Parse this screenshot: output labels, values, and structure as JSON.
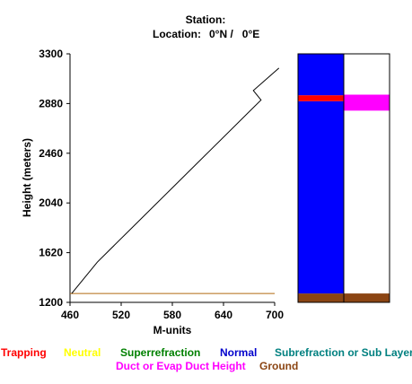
{
  "header": {
    "station_label": "Station:",
    "location_label": "Location:",
    "location_value": "0°N /   0°E"
  },
  "chart_data": {
    "type": "line",
    "xlabel": "M-units",
    "ylabel": "Height (meters)",
    "xlim": [
      460,
      700
    ],
    "ylim": [
      1200,
      3300
    ],
    "x_ticks": [
      "460",
      "520",
      "580",
      "640",
      "700"
    ],
    "y_ticks": [
      "1200",
      "1620",
      "2040",
      "2460",
      "2880",
      "3300"
    ],
    "series": [
      {
        "color": "#000000",
        "x": [
          462,
          492,
          684,
          675,
          705
        ],
        "y": [
          1275,
          1540,
          2910,
          2990,
          3180
        ]
      }
    ],
    "ground_line": {
      "y": 1275,
      "color": "#b06a10"
    },
    "condition_bars": [
      {
        "layers": [
          {
            "kind": "Ground",
            "from": 1200,
            "to": 1275,
            "color": "#8b4513"
          },
          {
            "kind": "Normal",
            "from": 1275,
            "to": 2900,
            "color": "#0000ff"
          },
          {
            "kind": "Trapping",
            "from": 2900,
            "to": 2950,
            "color": "#ff0000"
          },
          {
            "kind": "Normal",
            "from": 2950,
            "to": 3300,
            "color": "#0000ff"
          }
        ]
      },
      {
        "layers": [
          {
            "kind": "Ground",
            "from": 1200,
            "to": 1275,
            "color": "#8b4513"
          },
          {
            "kind": "Duct or Evap Duct Height",
            "from": 2820,
            "to": 2955,
            "color": "#ff00ff"
          }
        ]
      }
    ]
  },
  "legend": [
    {
      "label": "Trapping",
      "color": "#ff0000"
    },
    {
      "label": "Neutral",
      "color": "#ffff00"
    },
    {
      "label": "Superrefraction",
      "color": "#008000"
    },
    {
      "label": "Normal",
      "color": "#0000cc"
    },
    {
      "label": "Subrefraction or Sub Layer",
      "color": "#008080"
    },
    {
      "label": "Duct or Evap Duct Height",
      "color": "#ff00ff"
    },
    {
      "label": "Ground",
      "color": "#8b4513"
    }
  ]
}
